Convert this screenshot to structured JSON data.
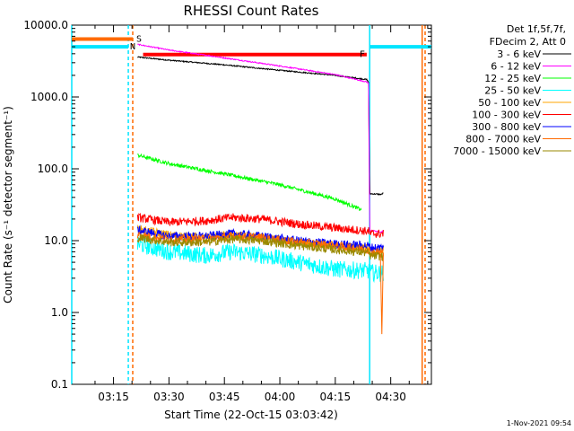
{
  "chart_data": {
    "type": "line",
    "title": "RHESSI Count Rates",
    "xlabel": "Start Time (22-Oct-15 03:03:42)",
    "ylabel": "Count Rate (s⁻¹ detector segment⁻¹)",
    "yscale": "log",
    "ylim": [
      0.1,
      10000
    ],
    "xlim": [
      "03:03:42",
      "04:41:00"
    ],
    "xlim_minutes": [
      3.7,
      101.0
    ],
    "yticks": [
      "0.1",
      "1.0",
      "10.0",
      "100.0",
      "1000.0",
      "10000.0"
    ],
    "ytick_values": [
      0.1,
      1,
      10,
      100,
      1000,
      10000
    ],
    "xticks": [
      "03:15",
      "03:30",
      "03:45",
      "04:00",
      "04:15",
      "04:30"
    ],
    "xtick_minutes": [
      15,
      30,
      45,
      60,
      75,
      90
    ],
    "legend": {
      "placement": "outside-right",
      "header": [
        "Det 1f,5f,7f,",
        "FDecim 2, Att 0"
      ]
    },
    "series": [
      {
        "name": "3 - 6 keV",
        "color": "#000000",
        "t": [
          21.5,
          30,
          45,
          60,
          75,
          83.5,
          84,
          84.3,
          87.5,
          88
        ],
        "values": [
          3600,
          3250,
          2800,
          2350,
          2000,
          1750,
          1600,
          45,
          44,
          46
        ]
      },
      {
        "name": "6 - 12 keV",
        "color": "#ff00ff",
        "t": [
          21.5,
          30,
          45,
          60,
          75,
          83.5,
          84,
          84.3,
          87.5,
          88
        ],
        "values": [
          5400,
          4500,
          3500,
          2700,
          2050,
          1620,
          1550,
          14,
          13,
          14
        ]
      },
      {
        "name": "12 - 25 keV",
        "color": "#00ff00",
        "t": [
          21.5,
          30,
          45,
          60,
          75,
          82
        ],
        "values": [
          155,
          118,
          85,
          60,
          38,
          27
        ]
      },
      {
        "name": "25 - 50 keV",
        "color": "#00ffff",
        "t": [
          21.5,
          30,
          40,
          47,
          55,
          65,
          75,
          84,
          84.3,
          88
        ],
        "values": [
          9.0,
          7.0,
          6.2,
          7.0,
          6.3,
          5.0,
          4.0,
          3.8,
          3.6,
          3.5
        ]
      },
      {
        "name": "50 - 100 keV",
        "color": "#ffa500",
        "t": [
          21.5,
          30,
          40,
          47,
          55,
          65,
          75,
          84,
          84.3,
          88
        ],
        "values": [
          14.5,
          12.0,
          11.0,
          12.0,
          11.0,
          9.5,
          8.5,
          7.8,
          6.5,
          7.5
        ]
      },
      {
        "name": "100 - 300 keV",
        "color": "#ff0000",
        "t": [
          21.5,
          30,
          40,
          47,
          55,
          65,
          75,
          84,
          84.3,
          88
        ],
        "values": [
          21,
          18,
          19,
          21,
          20,
          17,
          15,
          13.5,
          12.5,
          12.5
        ]
      },
      {
        "name": "300 - 800 keV",
        "color": "#0000ff",
        "t": [
          21.5,
          30,
          40,
          47,
          55,
          65,
          75,
          84,
          84.3,
          88
        ],
        "values": [
          14,
          11.5,
          11.5,
          12.5,
          11.5,
          10.0,
          9.0,
          8.5,
          8.0,
          8.0
        ]
      },
      {
        "name": "800 - 7000 keV",
        "color": "#ff6a00",
        "t": [
          21.5,
          30,
          40,
          47,
          55,
          65,
          75,
          84,
          84.3,
          88
        ],
        "values": [
          12,
          10.5,
          10.5,
          11.5,
          11.0,
          9.5,
          8.5,
          7.5,
          7.0,
          6.8
        ]
      },
      {
        "name": "7000 - 15000 keV",
        "color": "#9a8a00",
        "t": [
          21.5,
          30,
          40,
          47,
          55,
          65,
          75,
          84,
          84.3,
          88
        ],
        "values": [
          11,
          9.5,
          9.5,
          10.5,
          10.0,
          8.5,
          7.5,
          6.8,
          6.2,
          6.0
        ]
      }
    ],
    "flags": [
      {
        "label": "S",
        "color": "#ff6a00",
        "t_start": 3.7,
        "t_end": 20.2,
        "value": 6400
      },
      {
        "label": "N",
        "color": "#00e5ff",
        "t_start": 3.7,
        "t_end": 19.0,
        "value": 5000
      },
      {
        "label": "N",
        "color": "#00e5ff",
        "t_start": 84.3,
        "t_end": 101.0,
        "value": 5000
      },
      {
        "label": "F",
        "color": "#ff0000",
        "t_start": 23.0,
        "t_end": 83.5,
        "value": 3900
      }
    ],
    "vertical_markers": [
      {
        "t": 3.7,
        "color": "#00e5ff",
        "style": "solid"
      },
      {
        "t": 19.0,
        "color": "#00e5ff",
        "style": "dashed"
      },
      {
        "t": 20.2,
        "color": "#ff6a00",
        "style": "dashed"
      },
      {
        "t": 84.3,
        "color": "#00e5ff",
        "style": "solid"
      },
      {
        "t": 98.5,
        "color": "#ff6a00",
        "style": "solid"
      },
      {
        "t": 99.3,
        "color": "#ff6a00",
        "style": "dashed"
      }
    ],
    "orange_dip": {
      "t": [
        87.2,
        87.6,
        88.0
      ],
      "values": [
        6.5,
        0.5,
        6.8
      ],
      "color": "#ff6a00"
    }
  },
  "timestamp": "1-Nov-2021 09:54"
}
